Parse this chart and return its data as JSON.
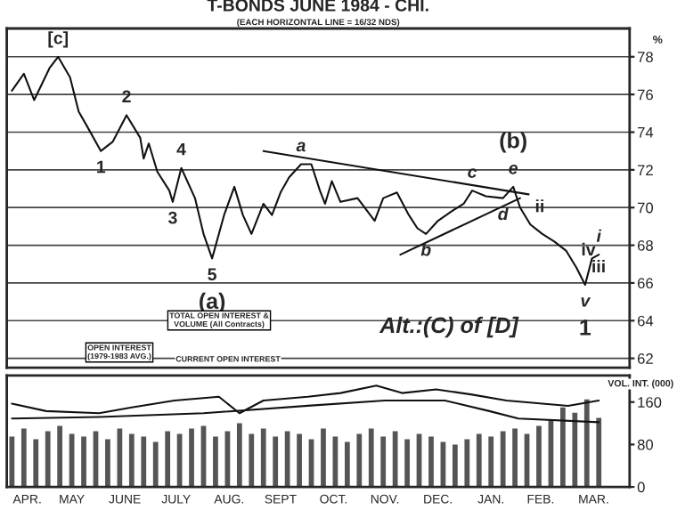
{
  "chart_data": [
    {
      "type": "line",
      "title": "T-BONDS JUNE 1984 - CHI.",
      "subtitle": "(EACH HORIZONTAL LINE = 16/32 NDS)",
      "ylabel": "%",
      "xlim": [
        "1983-04-08",
        "1984-04-06"
      ],
      "ylim": [
        61.5,
        79.5
      ],
      "yticks": [
        62,
        64,
        66,
        68,
        70,
        72,
        74,
        76,
        78
      ],
      "grid": "y",
      "tick_labels": "y",
      "series": [
        {
          "color": "#111111",
          "x": [
            "1983-04-11",
            "1983-04-18",
            "1983-04-24",
            "1983-05-03",
            "1983-05-08",
            "1983-05-15",
            "1983-05-20",
            "1983-05-25",
            "1983-06-02",
            "1983-06-09",
            "1983-06-17",
            "1983-06-25",
            "1983-06-27",
            "1983-06-30",
            "1983-07-05",
            "1983-07-12",
            "1983-07-14",
            "1983-07-19",
            "1983-07-27",
            "1983-08-01",
            "1983-08-06",
            "1983-08-13",
            "1983-08-19",
            "1983-08-24",
            "1983-08-29",
            "1983-09-05",
            "1983-09-10",
            "1983-09-15",
            "1983-09-20",
            "1983-09-27",
            "1983-10-03",
            "1983-10-08",
            "1983-10-11",
            "1983-10-15",
            "1983-10-20",
            "1983-10-30",
            "1983-11-09",
            "1983-11-14",
            "1983-11-22",
            "1983-11-29",
            "1983-12-04",
            "1983-12-09",
            "1983-12-16",
            "1983-12-24",
            "1983-12-31",
            "1984-01-05",
            "1984-01-13",
            "1984-01-23",
            "1984-01-29",
            "1984-02-02",
            "1984-02-08",
            "1984-02-15",
            "1984-02-22",
            "1984-02-29",
            "1984-03-06",
            "1984-03-11",
            "1984-03-15",
            "1984-03-19"
          ],
          "values": [
            76.2,
            77.1,
            75.7,
            77.4,
            78.0,
            76.9,
            75.1,
            74.3,
            73.0,
            73.5,
            74.9,
            73.7,
            72.6,
            73.4,
            71.9,
            70.9,
            70.3,
            72.1,
            70.5,
            68.6,
            67.3,
            69.6,
            71.1,
            69.6,
            68.6,
            70.2,
            69.6,
            70.8,
            71.6,
            72.3,
            72.3,
            70.9,
            70.2,
            71.4,
            70.3,
            70.5,
            69.3,
            70.5,
            70.8,
            69.6,
            68.9,
            68.6,
            69.3,
            69.8,
            70.2,
            70.9,
            70.6,
            70.5,
            71.1,
            70.0,
            69.1,
            68.6,
            68.2,
            67.7,
            66.8,
            65.9,
            67.3,
            67.5
          ]
        },
        {
          "color": "#111111",
          "x": [
            "1983-09-05",
            "1984-02-07"
          ],
          "values": [
            73.0,
            70.7
          ]
        },
        {
          "color": "#111111",
          "x": [
            "1983-11-24",
            "1984-02-02"
          ],
          "values": [
            67.5,
            70.5
          ]
        }
      ],
      "annotations": [
        {
          "text": "[c]",
          "x": "1983-05-08",
          "y": 78.0
        },
        {
          "text": "1",
          "x": "1983-06-02",
          "y": 73.0
        },
        {
          "text": "2",
          "x": "1983-06-17",
          "y": 74.9
        },
        {
          "text": "3",
          "x": "1983-07-14",
          "y": 70.3
        },
        {
          "text": "4",
          "x": "1983-07-19",
          "y": 72.1
        },
        {
          "text": "5",
          "x": "1983-08-06",
          "y": 67.3
        },
        {
          "text": "(a)",
          "x": "1983-08-06",
          "y": 67.3
        },
        {
          "text": "a",
          "x": "1983-09-27",
          "y": 72.3
        },
        {
          "text": "b",
          "x": "1983-12-09",
          "y": 68.6
        },
        {
          "text": "c",
          "x": "1984-01-05",
          "y": 70.9
        },
        {
          "text": "e",
          "x": "1984-01-29",
          "y": 71.1
        },
        {
          "text": "(b)",
          "x": "1984-01-29",
          "y": 71.1
        },
        {
          "text": "d",
          "x": "1984-01-23",
          "y": 70.5
        },
        {
          "text": "ii",
          "x": "1984-02-02",
          "y": 70.0
        },
        {
          "text": "iv",
          "x": "1984-02-29",
          "y": 67.7
        },
        {
          "text": "iii",
          "x": "1984-03-06",
          "y": 66.8
        },
        {
          "text": "v",
          "x": "1984-03-11",
          "y": 65.9
        },
        {
          "text": "i",
          "x": "1984-03-19",
          "y": 67.5
        },
        {
          "text": "1",
          "x": "1984-03-11",
          "y": 65.9
        },
        "Alt.:(C) of [D]"
      ]
    },
    {
      "type": "bar",
      "ylabel": "VOL. INT. (000)",
      "xlim": [
        "1983-04-08",
        "1984-04-06"
      ],
      "ylim": [
        0,
        210
      ],
      "yticks": [
        0,
        80,
        160
      ],
      "xticks": [
        {
          "value": "1983-04-20",
          "label": "APR."
        },
        {
          "value": "1983-05-16",
          "label": "MAY"
        },
        {
          "value": "1983-06-16",
          "label": "JUNE"
        },
        {
          "value": "1983-07-16",
          "label": "JULY"
        },
        {
          "value": "1983-08-16",
          "label": "AUG."
        },
        {
          "value": "1983-09-15",
          "label": "SEPT"
        },
        {
          "value": "1983-10-16",
          "label": "OCT."
        },
        {
          "value": "1983-11-15",
          "label": "NOV."
        },
        {
          "value": "1983-12-16",
          "label": "DEC."
        },
        {
          "value": "1984-01-16",
          "label": "JAN."
        },
        {
          "value": "1984-02-14",
          "label": "FEB."
        },
        {
          "value": "1984-03-16",
          "label": "MAR."
        }
      ],
      "series": [
        {
          "color": "#555555",
          "x": [
            "1983-04-11",
            "1983-04-18",
            "1983-04-25",
            "1983-05-02",
            "1983-05-09",
            "1983-05-16",
            "1983-05-23",
            "1983-05-30",
            "1983-06-06",
            "1983-06-13",
            "1983-06-20",
            "1983-06-27",
            "1983-07-04",
            "1983-07-11",
            "1983-07-18",
            "1983-07-25",
            "1983-08-01",
            "1983-08-08",
            "1983-08-15",
            "1983-08-22",
            "1983-08-29",
            "1983-09-05",
            "1983-09-12",
            "1983-09-19",
            "1983-09-26",
            "1983-10-03",
            "1983-10-10",
            "1983-10-17",
            "1983-10-24",
            "1983-10-31",
            "1983-11-07",
            "1983-11-14",
            "1983-11-21",
            "1983-11-28",
            "1983-12-05",
            "1983-12-12",
            "1983-12-19",
            "1983-12-26",
            "1984-01-02",
            "1984-01-09",
            "1984-01-16",
            "1984-01-23",
            "1984-01-30",
            "1984-02-06",
            "1984-02-13",
            "1984-02-20",
            "1984-02-27",
            "1984-03-05",
            "1984-03-12",
            "1984-03-19"
          ],
          "values": [
            95,
            110,
            90,
            105,
            115,
            100,
            95,
            105,
            90,
            110,
            100,
            95,
            85,
            105,
            100,
            110,
            115,
            95,
            105,
            120,
            100,
            110,
            95,
            105,
            100,
            90,
            110,
            95,
            85,
            100,
            110,
            95,
            105,
            90,
            100,
            95,
            85,
            80,
            90,
            100,
            95,
            105,
            110,
            100,
            115,
            125,
            150,
            140,
            165,
            130
          ]
        },
        {
          "type": "line",
          "color": "#111111",
          "x": [
            "1983-04-11",
            "1983-05-01",
            "1983-06-01",
            "1983-06-20",
            "1983-07-15",
            "1983-08-10",
            "1983-08-22",
            "1983-09-05",
            "1983-10-01",
            "1983-10-20",
            "1983-11-10",
            "1983-11-25",
            "1983-12-15",
            "1984-01-05",
            "1984-01-25",
            "1984-02-15",
            "1984-03-01",
            "1984-03-19"
          ],
          "values": [
            157,
            143,
            139,
            150,
            163,
            170,
            139,
            163,
            170,
            177,
            191,
            177,
            184,
            174,
            163,
            157,
            153,
            163
          ]
        },
        {
          "type": "line",
          "color": "#111111",
          "x": [
            "1983-04-11",
            "1983-06-01",
            "1983-08-01",
            "1983-10-01",
            "1983-11-15",
            "1983-12-20",
            "1984-01-15",
            "1984-02-01",
            "1984-03-19"
          ],
          "values": [
            129,
            132,
            139,
            153,
            163,
            163,
            143,
            129,
            122
          ]
        }
      ],
      "annotations": [
        "OPEN INTEREST\n(1979-1983 AVG.)",
        "TOTAL OPEN INTEREST &\nVOLUME (All Contracts)",
        "CURRENT OPEN INTEREST"
      ]
    }
  ]
}
